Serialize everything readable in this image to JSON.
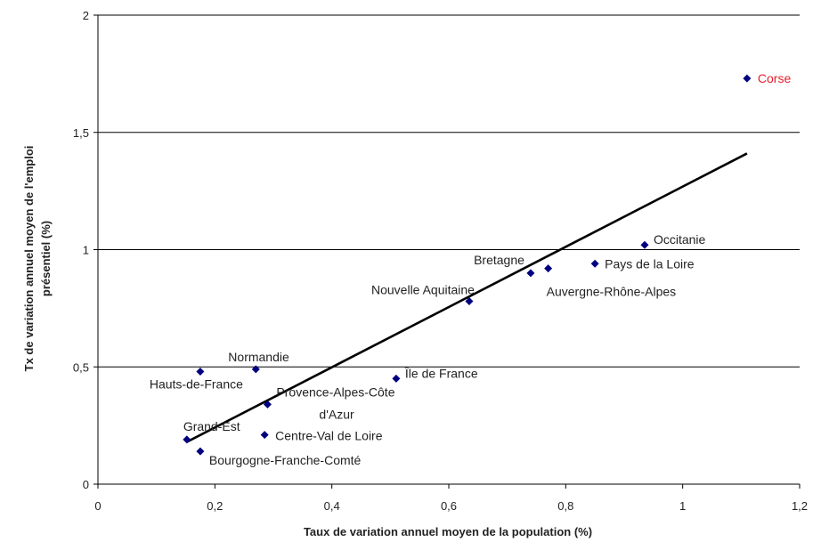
{
  "chart_data": {
    "type": "scatter",
    "title": "",
    "xlabel": "Taux de variation annuel moyen de la population (%)",
    "ylabel": [
      "Tx de variation annuel moyen de l'emploi",
      "présentiel (%)"
    ],
    "xlim": [
      0,
      1.2
    ],
    "ylim": [
      0,
      2
    ],
    "xticks": [
      "0",
      "0,2",
      "0,4",
      "0,6",
      "0,8",
      "1",
      "1,2"
    ],
    "yticks": [
      "0",
      "0,5",
      "1",
      "1,5",
      "2"
    ],
    "grid": "horizontal",
    "marker_color": "#00007f",
    "trendline_color": "#000000",
    "highlight_color": "#e8202a",
    "points": [
      {
        "label": "Corse",
        "x": 1.11,
        "y": 1.73,
        "highlight": true
      },
      {
        "label": "Occitanie",
        "x": 0.935,
        "y": 1.02
      },
      {
        "label": "Pays de la Loire",
        "x": 0.85,
        "y": 0.94
      },
      {
        "label": "Auvergne-Rhône-Alpes",
        "x": 0.77,
        "y": 0.92
      },
      {
        "label": "Bretagne",
        "x": 0.74,
        "y": 0.9
      },
      {
        "label": "Nouvelle Aquitaine",
        "x": 0.635,
        "y": 0.78
      },
      {
        "label": "Île de France",
        "x": 0.51,
        "y": 0.45
      },
      {
        "label": "Normandie",
        "x": 0.27,
        "y": 0.49
      },
      {
        "label": "Hauts-de-France",
        "x": 0.175,
        "y": 0.48
      },
      {
        "label": "Provence-Alpes-Côte d'Azur",
        "x": 0.29,
        "y": 0.34
      },
      {
        "label": "Centre-Val de Loire",
        "x": 0.285,
        "y": 0.21
      },
      {
        "label": "Grand-Est",
        "x": 0.152,
        "y": 0.19
      },
      {
        "label": "Bourgogne-Franche-Comté",
        "x": 0.175,
        "y": 0.14
      }
    ],
    "trendline": {
      "x": [
        0.152,
        1.11
      ],
      "y": [
        0.18,
        1.41
      ]
    }
  }
}
